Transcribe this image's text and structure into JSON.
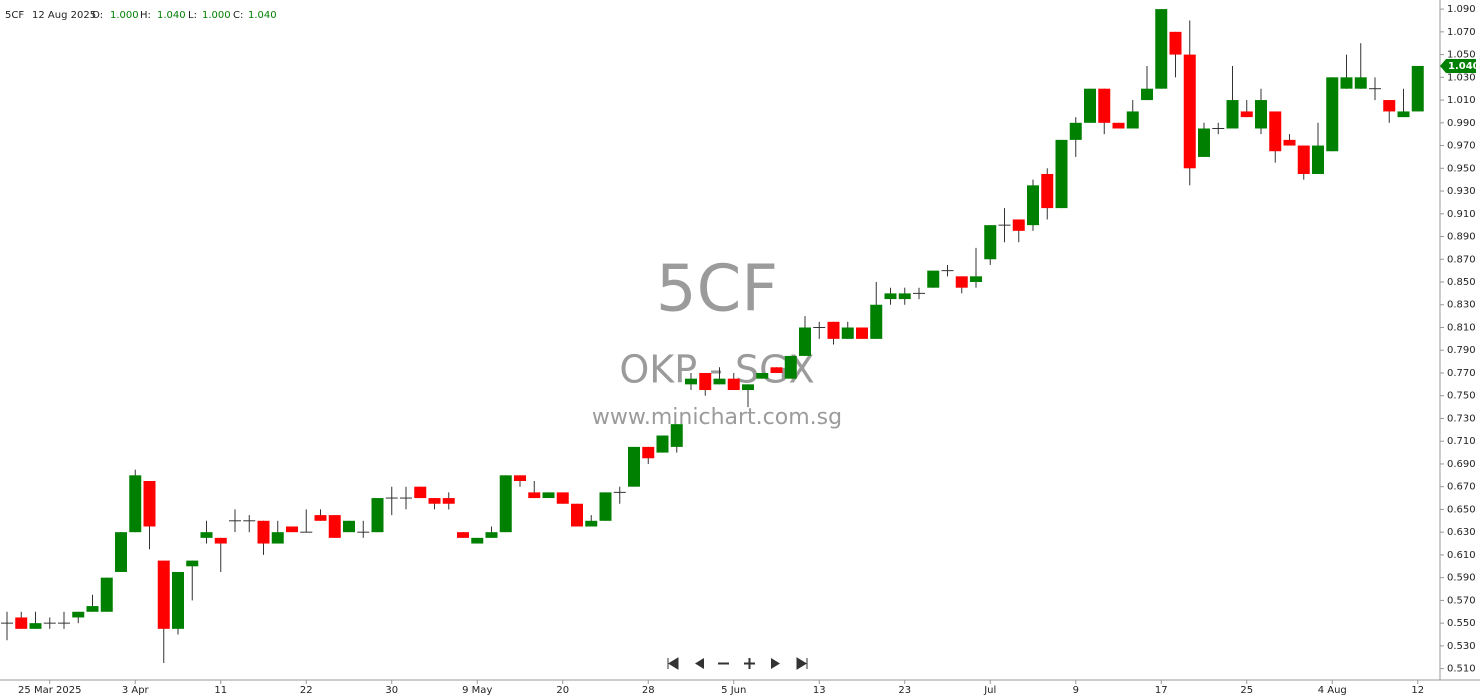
{
  "header": {
    "symbol": "5CF",
    "date": "12 Aug 2025",
    "o_label": "O:",
    "o_value": "1.000",
    "h_label": "H:",
    "h_value": "1.040",
    "l_label": "L:",
    "l_value": "1.000",
    "c_label": "C:",
    "c_value": "1.040"
  },
  "watermark": {
    "code": "5CF",
    "name": "OKP - SGX",
    "site": "www.minichart.com.sg"
  },
  "chart_data": {
    "type": "candlestick",
    "up_color": "#008000",
    "down_color": "#ff0000",
    "wick_color": "#333333",
    "current_price": {
      "value": 1.04,
      "label": "1.040"
    },
    "categories": [
      null,
      null,
      null,
      "25 Mar 2025",
      null,
      null,
      null,
      null,
      null,
      "3 Apr",
      null,
      null,
      null,
      null,
      null,
      "11",
      null,
      null,
      null,
      null,
      null,
      "22",
      null,
      null,
      null,
      null,
      null,
      "30",
      null,
      null,
      null,
      null,
      null,
      "9 May",
      null,
      null,
      null,
      null,
      null,
      "20",
      null,
      null,
      null,
      null,
      null,
      "28",
      null,
      null,
      null,
      null,
      null,
      "5 Jun",
      null,
      null,
      null,
      null,
      null,
      "13",
      null,
      null,
      null,
      null,
      null,
      "23",
      null,
      null,
      null,
      null,
      null,
      "Jul",
      null,
      null,
      null,
      null,
      null,
      "9",
      null,
      null,
      null,
      null,
      null,
      "17",
      null,
      null,
      null,
      null,
      null,
      "25",
      null,
      null,
      null,
      null,
      null,
      "4 Aug",
      null,
      null,
      null,
      null,
      null,
      "12"
    ],
    "open": [
      0.55,
      0.555,
      0.545,
      0.55,
      0.55,
      0.555,
      0.56,
      0.56,
      0.595,
      0.63,
      0.675,
      0.605,
      0.545,
      0.6,
      0.625,
      0.625,
      0.64,
      0.64,
      0.64,
      0.62,
      0.635,
      0.63,
      0.645,
      0.645,
      0.63,
      0.63,
      0.63,
      0.66,
      0.66,
      0.67,
      0.66,
      0.66,
      0.63,
      0.62,
      0.625,
      0.63,
      0.68,
      0.665,
      0.66,
      0.665,
      0.655,
      0.635,
      0.64,
      0.665,
      0.67,
      0.705,
      0.7,
      0.705,
      0.76,
      0.77,
      0.76,
      0.765,
      0.755,
      0.765,
      0.775,
      0.765,
      0.785,
      0.81,
      0.815,
      0.8,
      0.81,
      0.8,
      0.835,
      0.835,
      0.84,
      0.845,
      0.86,
      0.855,
      0.85,
      0.87,
      0.9,
      0.905,
      0.9,
      0.945,
      0.915,
      0.975,
      0.99,
      1.02,
      0.99,
      0.985,
      1.01,
      1.02,
      1.07,
      1.05,
      0.96,
      0.985,
      0.985,
      1.0,
      0.985,
      1.0,
      0.975,
      0.97,
      0.945,
      0.965,
      1.02,
      1.02,
      1.02,
      1.01,
      0.995,
      1.0
    ],
    "high": [
      0.56,
      0.56,
      0.56,
      0.555,
      0.56,
      0.56,
      0.575,
      0.59,
      0.63,
      0.685,
      0.675,
      0.605,
      0.595,
      0.605,
      0.64,
      0.625,
      0.65,
      0.645,
      0.64,
      0.64,
      0.635,
      0.65,
      0.65,
      0.645,
      0.64,
      0.64,
      0.66,
      0.67,
      0.67,
      0.67,
      0.66,
      0.665,
      0.63,
      0.625,
      0.635,
      0.68,
      0.68,
      0.675,
      0.665,
      0.665,
      0.655,
      0.645,
      0.665,
      0.67,
      0.705,
      0.705,
      0.715,
      0.725,
      0.77,
      0.77,
      0.775,
      0.77,
      0.76,
      0.77,
      0.775,
      0.785,
      0.82,
      0.815,
      0.815,
      0.815,
      0.81,
      0.85,
      0.845,
      0.845,
      0.845,
      0.86,
      0.865,
      0.855,
      0.88,
      0.9,
      0.915,
      0.905,
      0.94,
      0.95,
      0.975,
      0.995,
      1.02,
      1.02,
      0.99,
      1.01,
      1.04,
      1.09,
      1.07,
      1.08,
      0.99,
      0.99,
      1.04,
      1.01,
      1.02,
      1.0,
      0.98,
      0.97,
      0.99,
      1.03,
      1.05,
      1.06,
      1.03,
      1.01,
      1.02,
      1.04
    ],
    "low": [
      0.535,
      0.545,
      0.545,
      0.545,
      0.545,
      0.55,
      0.56,
      0.56,
      0.595,
      0.63,
      0.615,
      0.515,
      0.54,
      0.57,
      0.62,
      0.595,
      0.63,
      0.63,
      0.61,
      0.62,
      0.63,
      0.63,
      0.64,
      0.625,
      0.63,
      0.625,
      0.63,
      0.645,
      0.65,
      0.66,
      0.65,
      0.65,
      0.625,
      0.62,
      0.625,
      0.63,
      0.67,
      0.66,
      0.66,
      0.655,
      0.635,
      0.635,
      0.64,
      0.655,
      0.67,
      0.69,
      0.7,
      0.7,
      0.755,
      0.75,
      0.76,
      0.755,
      0.74,
      0.765,
      0.77,
      0.765,
      0.785,
      0.8,
      0.795,
      0.8,
      0.8,
      0.8,
      0.83,
      0.83,
      0.835,
      0.845,
      0.855,
      0.84,
      0.845,
      0.865,
      0.885,
      0.885,
      0.895,
      0.905,
      0.915,
      0.96,
      0.99,
      0.98,
      0.985,
      0.985,
      1.01,
      1.02,
      1.03,
      0.935,
      0.96,
      0.98,
      0.985,
      0.995,
      0.98,
      0.955,
      0.97,
      0.94,
      0.945,
      0.965,
      1.02,
      1.02,
      1.01,
      0.99,
      0.995,
      1.0
    ],
    "close": [
      0.55,
      0.545,
      0.55,
      0.55,
      0.55,
      0.56,
      0.565,
      0.59,
      0.63,
      0.68,
      0.635,
      0.545,
      0.595,
      0.605,
      0.63,
      0.62,
      0.64,
      0.64,
      0.62,
      0.63,
      0.63,
      0.63,
      0.64,
      0.625,
      0.64,
      0.63,
      0.66,
      0.66,
      0.66,
      0.66,
      0.655,
      0.655,
      0.625,
      0.625,
      0.63,
      0.68,
      0.675,
      0.66,
      0.665,
      0.655,
      0.635,
      0.64,
      0.665,
      0.665,
      0.705,
      0.695,
      0.715,
      0.725,
      0.765,
      0.755,
      0.765,
      0.755,
      0.76,
      0.77,
      0.77,
      0.785,
      0.81,
      0.81,
      0.8,
      0.81,
      0.8,
      0.83,
      0.84,
      0.84,
      0.84,
      0.86,
      0.86,
      0.845,
      0.855,
      0.9,
      0.9,
      0.895,
      0.935,
      0.915,
      0.975,
      0.99,
      1.02,
      0.99,
      0.985,
      1.0,
      1.02,
      1.09,
      1.05,
      0.95,
      0.985,
      0.985,
      1.01,
      0.995,
      1.01,
      0.965,
      0.97,
      0.945,
      0.97,
      1.03,
      1.03,
      1.03,
      1.02,
      1.0,
      1.0,
      1.04
    ],
    "ylim": [
      0.5,
      1.098
    ],
    "yticks": [
      {
        "value": 0.51,
        "label": "0.510"
      },
      {
        "value": 0.53,
        "label": "0.530"
      },
      {
        "value": 0.55,
        "label": "0.550"
      },
      {
        "value": 0.57,
        "label": "0.570"
      },
      {
        "value": 0.59,
        "label": "0.590"
      },
      {
        "value": 0.61,
        "label": "0.610"
      },
      {
        "value": 0.63,
        "label": "0.630"
      },
      {
        "value": 0.65,
        "label": "0.650"
      },
      {
        "value": 0.67,
        "label": "0.670"
      },
      {
        "value": 0.69,
        "label": "0.690"
      },
      {
        "value": 0.71,
        "label": "0.710"
      },
      {
        "value": 0.73,
        "label": "0.730"
      },
      {
        "value": 0.75,
        "label": "0.750"
      },
      {
        "value": 0.77,
        "label": "0.770"
      },
      {
        "value": 0.79,
        "label": "0.790"
      },
      {
        "value": 0.81,
        "label": "0.810"
      },
      {
        "value": 0.83,
        "label": "0.830"
      },
      {
        "value": 0.85,
        "label": "0.850"
      },
      {
        "value": 0.87,
        "label": "0.870"
      },
      {
        "value": 0.89,
        "label": "0.890"
      },
      {
        "value": 0.91,
        "label": "0.910"
      },
      {
        "value": 0.93,
        "label": "0.930"
      },
      {
        "value": 0.95,
        "label": "0.950"
      },
      {
        "value": 0.97,
        "label": "0.970"
      },
      {
        "value": 0.99,
        "label": "0.990"
      },
      {
        "value": 1.01,
        "label": "1.010"
      },
      {
        "value": 1.03,
        "label": "1.030"
      },
      {
        "value": 1.05,
        "label": "1.050"
      },
      {
        "value": 1.07,
        "label": "1.070"
      },
      {
        "value": 1.09,
        "label": "1.090"
      }
    ],
    "grid": false
  }
}
